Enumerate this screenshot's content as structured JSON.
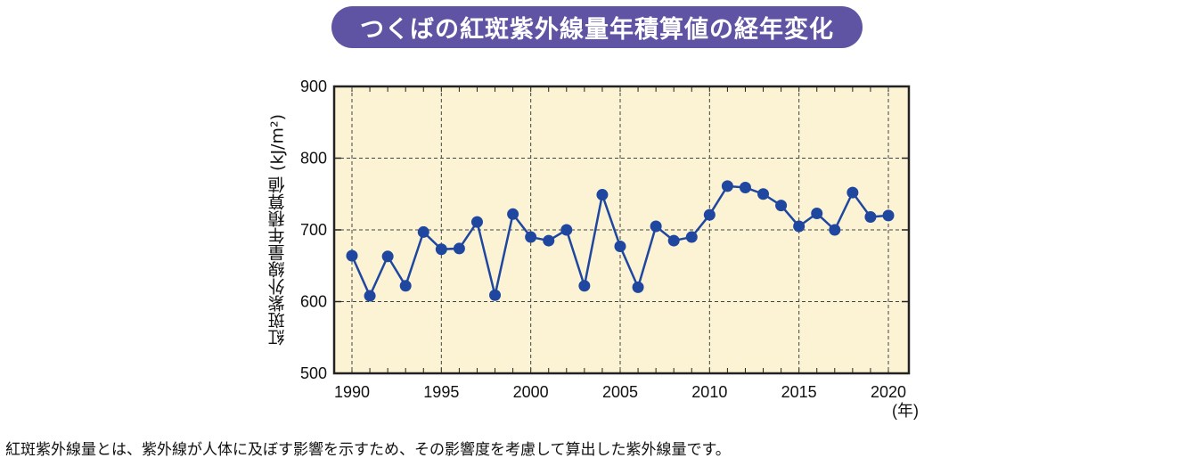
{
  "title": "つくばの紅斑紫外線量年積算値の経年変化",
  "footnote": "紅斑紫外線量とは、紫外線が人体に及ぼす影響を示すため、その影響度を考慮して算出した紫外線量です。",
  "colors": {
    "title_bg": "#5f54a3",
    "plot_bg": "#fbf3d3",
    "series": "#1f47a0"
  },
  "chart_data": {
    "type": "line",
    "title": "つくばの紅斑紫外線量年積算値の経年変化",
    "xlabel": "(年)",
    "ylabel": "紅斑紫外線量年積算値 (kJ/m²)",
    "xlim": [
      1989,
      2021
    ],
    "ylim": [
      500,
      900
    ],
    "x_ticks": [
      "1990",
      "1995",
      "2000",
      "2005",
      "2010",
      "2015",
      "2020"
    ],
    "y_ticks": [
      "500",
      "600",
      "700",
      "800",
      "900"
    ],
    "grid": true,
    "markers": true,
    "x": [
      1990,
      1991,
      1992,
      1993,
      1994,
      1995,
      1996,
      1997,
      1998,
      1999,
      2000,
      2001,
      2002,
      2003,
      2004,
      2005,
      2006,
      2007,
      2008,
      2009,
      2010,
      2011,
      2012,
      2013,
      2014,
      2015,
      2016,
      2017,
      2018,
      2019,
      2020
    ],
    "values": [
      664,
      608,
      663,
      622,
      697,
      673,
      674,
      711,
      609,
      722,
      690,
      685,
      700,
      622,
      749,
      677,
      620,
      705,
      685,
      690,
      721,
      761,
      759,
      750,
      734,
      705,
      723,
      700,
      752,
      718,
      720
    ]
  }
}
